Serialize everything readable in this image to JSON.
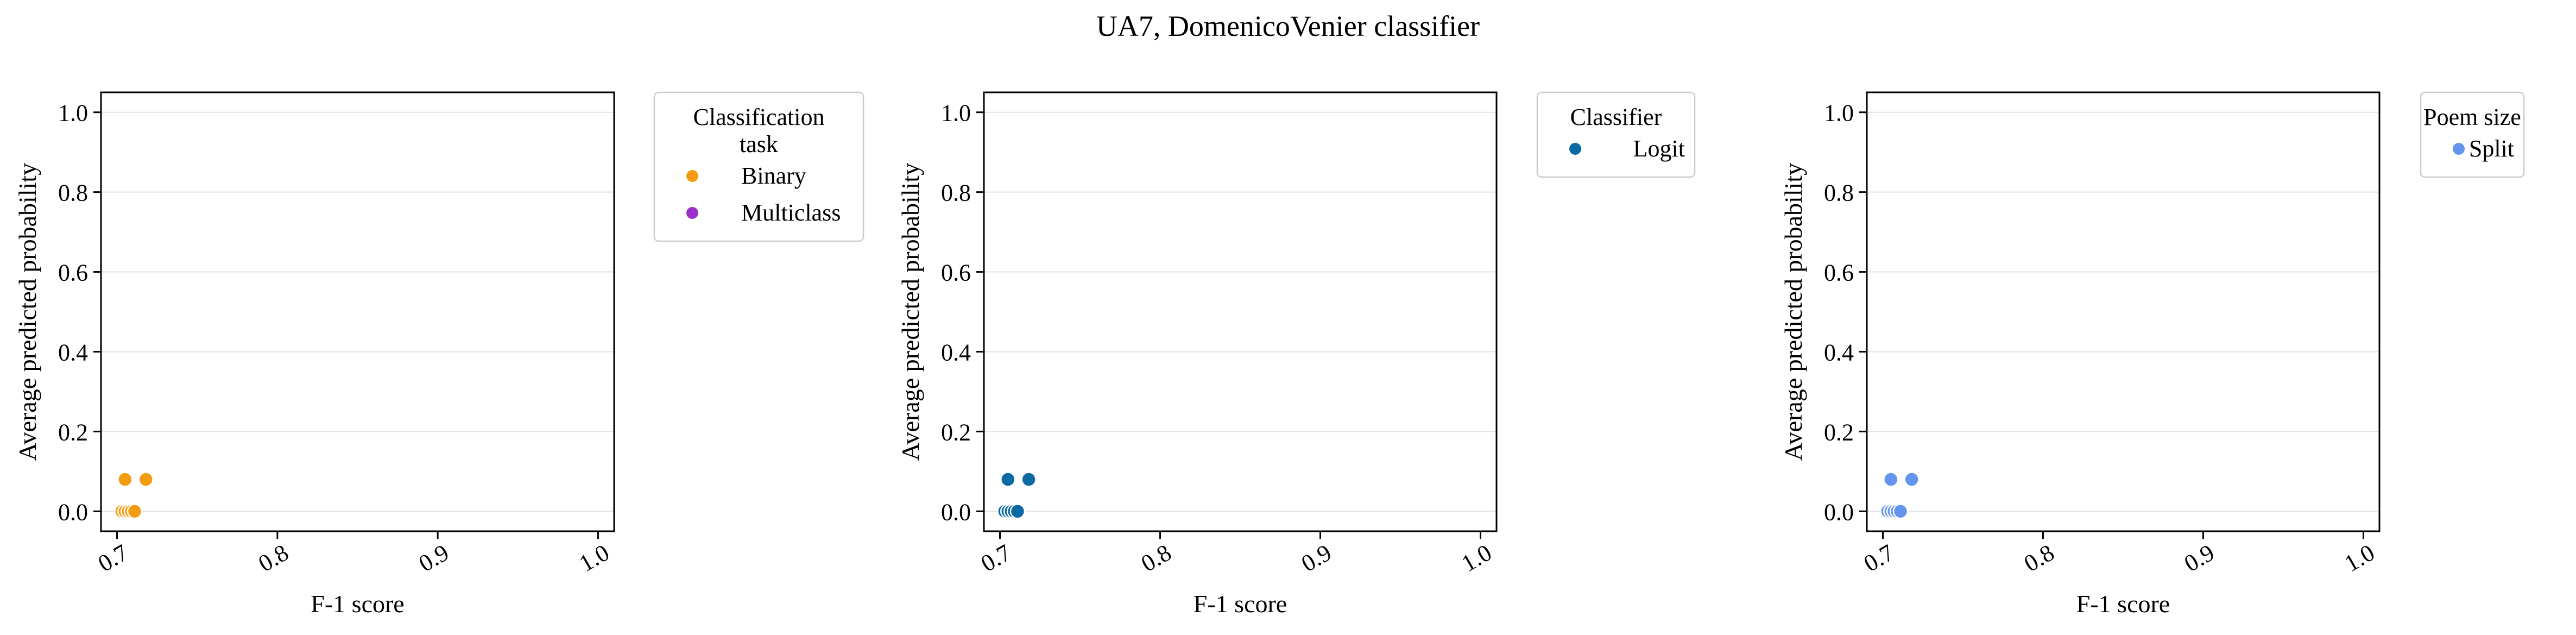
{
  "figure": {
    "title": "UA7, DomenicoVenier classifier"
  },
  "chart_data": [
    {
      "type": "scatter",
      "xlabel": "F-1 score",
      "ylabel": "Average predicted probability",
      "xlim": [
        0.69,
        1.01
      ],
      "ylim": [
        -0.05,
        1.05
      ],
      "xticks": [
        "0.7",
        "0.8",
        "0.9",
        "1.0"
      ],
      "yticks": [
        "0.0",
        "0.2",
        "0.4",
        "0.6",
        "0.8",
        "1.0"
      ],
      "grid": "horizontal",
      "legend": {
        "title": "Classification task",
        "title_lines": [
          "Classification",
          "task"
        ],
        "placement": "outside-right",
        "entries": [
          {
            "label": "Binary",
            "color": "#f39c12"
          },
          {
            "label": "Multiclass",
            "color": "#9b30c8"
          }
        ]
      },
      "series": [
        {
          "name": "Binary",
          "color": "#f39c12",
          "points": [
            [
              0.703,
              0.0
            ],
            [
              0.705,
              0.0
            ],
            [
              0.707,
              0.0
            ],
            [
              0.709,
              0.0
            ],
            [
              0.711,
              0.0
            ],
            [
              0.705,
              0.08
            ],
            [
              0.718,
              0.08
            ]
          ]
        },
        {
          "name": "Multiclass",
          "color": "#9b30c8",
          "points": []
        }
      ]
    },
    {
      "type": "scatter",
      "xlabel": "F-1 score",
      "ylabel": "Average predicted probability",
      "xlim": [
        0.69,
        1.01
      ],
      "ylim": [
        -0.05,
        1.05
      ],
      "xticks": [
        "0.7",
        "0.8",
        "0.9",
        "1.0"
      ],
      "yticks": [
        "0.0",
        "0.2",
        "0.4",
        "0.6",
        "0.8",
        "1.0"
      ],
      "grid": "horizontal",
      "legend": {
        "title": "Classifier",
        "title_lines": [
          "Classifier"
        ],
        "placement": "outside-right",
        "entries": [
          {
            "label": "Logit",
            "color": "#0a6aa1"
          }
        ]
      },
      "series": [
        {
          "name": "Logit",
          "color": "#0a6aa1",
          "points": [
            [
              0.703,
              0.0
            ],
            [
              0.705,
              0.0
            ],
            [
              0.707,
              0.0
            ],
            [
              0.709,
              0.0
            ],
            [
              0.711,
              0.0
            ],
            [
              0.705,
              0.08
            ],
            [
              0.718,
              0.08
            ]
          ]
        }
      ]
    },
    {
      "type": "scatter",
      "xlabel": "F-1 score",
      "ylabel": "Average predicted probability",
      "xlim": [
        0.69,
        1.01
      ],
      "ylim": [
        -0.05,
        1.05
      ],
      "xticks": [
        "0.7",
        "0.8",
        "0.9",
        "1.0"
      ],
      "yticks": [
        "0.0",
        "0.2",
        "0.4",
        "0.6",
        "0.8",
        "1.0"
      ],
      "grid": "horizontal",
      "legend": {
        "title": "Poem size",
        "title_lines": [
          "Poem size"
        ],
        "placement": "outside-right",
        "entries": [
          {
            "label": "Split",
            "color": "#6495ed"
          }
        ]
      },
      "series": [
        {
          "name": "Split",
          "color": "#6495ed",
          "points": [
            [
              0.703,
              0.0
            ],
            [
              0.705,
              0.0
            ],
            [
              0.707,
              0.0
            ],
            [
              0.709,
              0.0
            ],
            [
              0.711,
              0.0
            ],
            [
              0.705,
              0.08
            ],
            [
              0.718,
              0.08
            ]
          ]
        }
      ]
    }
  ]
}
